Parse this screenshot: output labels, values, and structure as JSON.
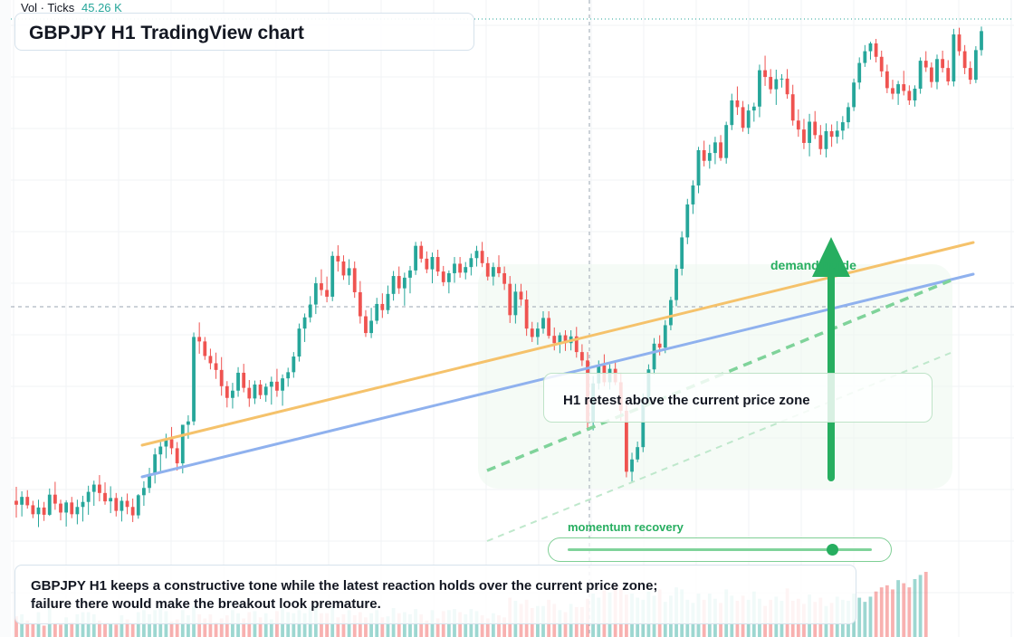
{
  "header": {
    "title": "GBPJPY H1 TradingView chart",
    "volume_label": "Vol · Ticks",
    "volume_value": "45.26 K"
  },
  "annotations": {
    "retest_text": "H1 retest above the current price zone",
    "demand_label": "demand guide",
    "momentum_label": "momentum recovery",
    "momentum_level": 0.87,
    "caption": "GBPJPY H1 keeps a constructive tone while the latest reaction holds over the current price zone; failure there would make the breakout look premature."
  },
  "colors": {
    "up": "#26a69a",
    "down": "#ef5350",
    "trend_orange": "#f5c26b",
    "trend_blue": "#8fb1ee",
    "accent_green": "#27ae60"
  },
  "chart_data": {
    "type": "candlestick",
    "title": "GBPJPY H1 TradingView chart",
    "ylim": [
      0,
      100
    ],
    "candles": [
      {
        "o": 14.0,
        "h": 16.5,
        "l": 11.0,
        "c": 13.3
      },
      {
        "o": 13.3,
        "h": 15.7,
        "l": 11.2,
        "c": 14.7
      },
      {
        "o": 14.7,
        "h": 15.9,
        "l": 12.6,
        "c": 13.2
      },
      {
        "o": 13.2,
        "h": 14.0,
        "l": 10.9,
        "c": 11.6
      },
      {
        "o": 11.6,
        "h": 14.2,
        "l": 9.3,
        "c": 12.8
      },
      {
        "o": 12.8,
        "h": 13.8,
        "l": 10.4,
        "c": 11.5
      },
      {
        "o": 11.5,
        "h": 16.2,
        "l": 11.3,
        "c": 15.1
      },
      {
        "o": 15.1,
        "h": 17.4,
        "l": 12.4,
        "c": 13.5
      },
      {
        "o": 13.5,
        "h": 14.2,
        "l": 10.5,
        "c": 11.9
      },
      {
        "o": 11.9,
        "h": 14.1,
        "l": 9.4,
        "c": 13.7
      },
      {
        "o": 13.7,
        "h": 14.7,
        "l": 10.9,
        "c": 11.6
      },
      {
        "o": 11.6,
        "h": 14.2,
        "l": 9.8,
        "c": 12.9
      },
      {
        "o": 12.9,
        "h": 14.9,
        "l": 10.3,
        "c": 13.8
      },
      {
        "o": 13.8,
        "h": 16.7,
        "l": 11.5,
        "c": 15.6
      },
      {
        "o": 15.6,
        "h": 17.6,
        "l": 13.1,
        "c": 16.9
      },
      {
        "o": 16.9,
        "h": 18.6,
        "l": 13.9,
        "c": 15.4
      },
      {
        "o": 15.4,
        "h": 17.3,
        "l": 13.3,
        "c": 13.9
      },
      {
        "o": 13.9,
        "h": 16.6,
        "l": 11.8,
        "c": 14.5
      },
      {
        "o": 14.5,
        "h": 15.4,
        "l": 11.2,
        "c": 12.2
      },
      {
        "o": 12.2,
        "h": 14.7,
        "l": 10.3,
        "c": 14.0
      },
      {
        "o": 14.0,
        "h": 15.3,
        "l": 11.6,
        "c": 12.9
      },
      {
        "o": 12.9,
        "h": 14.4,
        "l": 10.2,
        "c": 11.4
      },
      {
        "o": 11.4,
        "h": 15.2,
        "l": 10.8,
        "c": 15.0
      },
      {
        "o": 15.0,
        "h": 17.5,
        "l": 13.1,
        "c": 16.3
      },
      {
        "o": 16.3,
        "h": 19.9,
        "l": 15.4,
        "c": 18.8
      },
      {
        "o": 18.8,
        "h": 23.4,
        "l": 17.1,
        "c": 22.3
      },
      {
        "o": 22.3,
        "h": 24.8,
        "l": 19.2,
        "c": 23.7
      },
      {
        "o": 23.7,
        "h": 26.0,
        "l": 21.6,
        "c": 25.0
      },
      {
        "o": 25.0,
        "h": 27.2,
        "l": 22.3,
        "c": 23.4
      },
      {
        "o": 23.4,
        "h": 24.5,
        "l": 19.4,
        "c": 20.7
      },
      {
        "o": 20.7,
        "h": 27.5,
        "l": 18.9,
        "c": 27.6
      },
      {
        "o": 27.6,
        "h": 29.3,
        "l": 25.1,
        "c": 28.2
      },
      {
        "o": 28.2,
        "h": 44.1,
        "l": 27.5,
        "c": 43.3
      },
      {
        "o": 43.3,
        "h": 45.9,
        "l": 40.3,
        "c": 42.5
      },
      {
        "o": 42.5,
        "h": 43.3,
        "l": 39.2,
        "c": 39.9
      },
      {
        "o": 39.9,
        "h": 41.2,
        "l": 37.5,
        "c": 38.6
      },
      {
        "o": 38.6,
        "h": 40.5,
        "l": 35.8,
        "c": 37.4
      },
      {
        "o": 37.4,
        "h": 39.7,
        "l": 32.8,
        "c": 34.5
      },
      {
        "o": 34.5,
        "h": 35.4,
        "l": 30.7,
        "c": 32.4
      },
      {
        "o": 32.4,
        "h": 35.1,
        "l": 30.5,
        "c": 33.7
      },
      {
        "o": 33.7,
        "h": 37.9,
        "l": 32.6,
        "c": 36.9
      },
      {
        "o": 36.9,
        "h": 38.5,
        "l": 33.4,
        "c": 34.2
      },
      {
        "o": 34.2,
        "h": 35.6,
        "l": 30.8,
        "c": 32.3
      },
      {
        "o": 32.3,
        "h": 35.5,
        "l": 31.3,
        "c": 34.8
      },
      {
        "o": 34.8,
        "h": 35.6,
        "l": 32.2,
        "c": 32.9
      },
      {
        "o": 32.9,
        "h": 35.0,
        "l": 31.7,
        "c": 34.4
      },
      {
        "o": 34.4,
        "h": 36.2,
        "l": 31.2,
        "c": 35.3
      },
      {
        "o": 35.3,
        "h": 37.6,
        "l": 32.6,
        "c": 33.7
      },
      {
        "o": 33.7,
        "h": 36.6,
        "l": 31.0,
        "c": 35.9
      },
      {
        "o": 35.9,
        "h": 37.8,
        "l": 34.4,
        "c": 37.0
      },
      {
        "o": 37.0,
        "h": 40.6,
        "l": 36.0,
        "c": 39.8
      },
      {
        "o": 39.8,
        "h": 45.7,
        "l": 38.9,
        "c": 44.8
      },
      {
        "o": 44.8,
        "h": 47.5,
        "l": 42.4,
        "c": 46.8
      },
      {
        "o": 46.8,
        "h": 50.6,
        "l": 45.9,
        "c": 49.1
      },
      {
        "o": 49.1,
        "h": 54.0,
        "l": 47.4,
        "c": 52.9
      },
      {
        "o": 52.9,
        "h": 55.4,
        "l": 50.7,
        "c": 51.7
      },
      {
        "o": 51.7,
        "h": 54.1,
        "l": 49.5,
        "c": 50.5
      },
      {
        "o": 50.5,
        "h": 58.6,
        "l": 49.7,
        "c": 57.8
      },
      {
        "o": 57.8,
        "h": 59.7,
        "l": 55.0,
        "c": 56.8
      },
      {
        "o": 56.8,
        "h": 57.9,
        "l": 53.5,
        "c": 54.3
      },
      {
        "o": 54.3,
        "h": 57.2,
        "l": 52.6,
        "c": 55.6
      },
      {
        "o": 55.6,
        "h": 56.8,
        "l": 50.3,
        "c": 51.3
      },
      {
        "o": 51.3,
        "h": 53.3,
        "l": 45.7,
        "c": 47.0
      },
      {
        "o": 47.0,
        "h": 48.1,
        "l": 43.3,
        "c": 44.0
      },
      {
        "o": 44.0,
        "h": 48.5,
        "l": 43.1,
        "c": 46.2
      },
      {
        "o": 46.2,
        "h": 50.3,
        "l": 45.6,
        "c": 49.2
      },
      {
        "o": 49.2,
        "h": 51.1,
        "l": 46.7,
        "c": 48.1
      },
      {
        "o": 48.1,
        "h": 52.5,
        "l": 47.4,
        "c": 51.0
      },
      {
        "o": 51.0,
        "h": 55.1,
        "l": 49.8,
        "c": 54.2
      },
      {
        "o": 54.2,
        "h": 55.9,
        "l": 51.0,
        "c": 52.0
      },
      {
        "o": 52.0,
        "h": 54.8,
        "l": 48.9,
        "c": 53.9
      },
      {
        "o": 53.9,
        "h": 56.0,
        "l": 51.1,
        "c": 55.2
      },
      {
        "o": 55.2,
        "h": 60.3,
        "l": 54.4,
        "c": 59.6
      },
      {
        "o": 59.6,
        "h": 60.4,
        "l": 56.6,
        "c": 57.3
      },
      {
        "o": 57.3,
        "h": 58.6,
        "l": 54.7,
        "c": 55.4
      },
      {
        "o": 55.4,
        "h": 58.4,
        "l": 52.9,
        "c": 57.6
      },
      {
        "o": 57.6,
        "h": 58.9,
        "l": 54.2,
        "c": 55.0
      },
      {
        "o": 55.0,
        "h": 56.0,
        "l": 52.4,
        "c": 53.1
      },
      {
        "o": 53.1,
        "h": 55.2,
        "l": 51.1,
        "c": 54.7
      },
      {
        "o": 54.7,
        "h": 57.6,
        "l": 53.0,
        "c": 56.4
      },
      {
        "o": 56.4,
        "h": 57.6,
        "l": 53.9,
        "c": 54.8
      },
      {
        "o": 54.8,
        "h": 56.7,
        "l": 53.6,
        "c": 55.8
      },
      {
        "o": 55.8,
        "h": 58.2,
        "l": 54.3,
        "c": 57.4
      },
      {
        "o": 57.4,
        "h": 59.6,
        "l": 55.9,
        "c": 58.7
      },
      {
        "o": 58.7,
        "h": 60.3,
        "l": 55.8,
        "c": 56.5
      },
      {
        "o": 56.5,
        "h": 57.6,
        "l": 53.4,
        "c": 54.1
      },
      {
        "o": 54.1,
        "h": 56.6,
        "l": 52.5,
        "c": 55.8
      },
      {
        "o": 55.8,
        "h": 57.9,
        "l": 54.0,
        "c": 54.7
      },
      {
        "o": 54.7,
        "h": 55.9,
        "l": 51.7,
        "c": 52.8
      },
      {
        "o": 52.8,
        "h": 54.2,
        "l": 45.8,
        "c": 47.2
      },
      {
        "o": 47.2,
        "h": 52.8,
        "l": 45.7,
        "c": 51.4
      },
      {
        "o": 51.4,
        "h": 52.8,
        "l": 48.9,
        "c": 50.0
      },
      {
        "o": 50.0,
        "h": 51.6,
        "l": 43.5,
        "c": 44.8
      },
      {
        "o": 44.8,
        "h": 46.0,
        "l": 42.4,
        "c": 43.3
      },
      {
        "o": 43.3,
        "h": 45.9,
        "l": 41.9,
        "c": 44.8
      },
      {
        "o": 44.8,
        "h": 47.9,
        "l": 43.9,
        "c": 46.7
      },
      {
        "o": 46.7,
        "h": 47.9,
        "l": 43.0,
        "c": 43.5
      },
      {
        "o": 43.5,
        "h": 45.0,
        "l": 40.9,
        "c": 42.2
      },
      {
        "o": 42.2,
        "h": 44.1,
        "l": 40.4,
        "c": 43.6
      },
      {
        "o": 43.6,
        "h": 44.5,
        "l": 40.8,
        "c": 42.2
      },
      {
        "o": 42.2,
        "h": 44.5,
        "l": 40.9,
        "c": 43.4
      },
      {
        "o": 43.4,
        "h": 45.1,
        "l": 39.6,
        "c": 40.6
      },
      {
        "o": 40.6,
        "h": 42.0,
        "l": 38.1,
        "c": 39.1
      },
      {
        "o": 39.1,
        "h": 40.6,
        "l": 26.5,
        "c": 28.1
      },
      {
        "o": 28.1,
        "h": 36.3,
        "l": 26.6,
        "c": 35.0
      },
      {
        "o": 35.0,
        "h": 39.1,
        "l": 33.9,
        "c": 38.2
      },
      {
        "o": 38.2,
        "h": 40.2,
        "l": 34.5,
        "c": 35.2
      },
      {
        "o": 35.2,
        "h": 38.4,
        "l": 33.9,
        "c": 37.6
      },
      {
        "o": 37.6,
        "h": 38.8,
        "l": 34.7,
        "c": 35.2
      },
      {
        "o": 35.2,
        "h": 36.9,
        "l": 28.3,
        "c": 30.1
      },
      {
        "o": 30.1,
        "h": 31.3,
        "l": 18.2,
        "c": 19.2
      },
      {
        "o": 19.2,
        "h": 22.6,
        "l": 17.2,
        "c": 21.4
      },
      {
        "o": 21.4,
        "h": 24.6,
        "l": 20.9,
        "c": 23.6
      },
      {
        "o": 23.6,
        "h": 33.2,
        "l": 22.7,
        "c": 32.1
      },
      {
        "o": 32.1,
        "h": 38.4,
        "l": 31.7,
        "c": 37.5
      },
      {
        "o": 37.5,
        "h": 43.1,
        "l": 36.6,
        "c": 42.1
      },
      {
        "o": 42.1,
        "h": 43.6,
        "l": 40.0,
        "c": 41.4
      },
      {
        "o": 41.4,
        "h": 46.3,
        "l": 40.4,
        "c": 45.4
      },
      {
        "o": 45.4,
        "h": 50.5,
        "l": 44.5,
        "c": 49.9
      },
      {
        "o": 49.9,
        "h": 56.2,
        "l": 48.8,
        "c": 55.5
      },
      {
        "o": 55.5,
        "h": 62.2,
        "l": 54.3,
        "c": 61.1
      },
      {
        "o": 61.1,
        "h": 68.0,
        "l": 59.9,
        "c": 67.0
      },
      {
        "o": 67.0,
        "h": 71.3,
        "l": 65.3,
        "c": 70.4
      },
      {
        "o": 70.4,
        "h": 77.3,
        "l": 69.0,
        "c": 76.7
      },
      {
        "o": 76.7,
        "h": 78.4,
        "l": 73.8,
        "c": 74.8
      },
      {
        "o": 74.8,
        "h": 77.7,
        "l": 73.4,
        "c": 76.2
      },
      {
        "o": 76.2,
        "h": 79.1,
        "l": 74.2,
        "c": 78.1
      },
      {
        "o": 78.1,
        "h": 79.4,
        "l": 74.8,
        "c": 75.3
      },
      {
        "o": 75.3,
        "h": 81.8,
        "l": 74.3,
        "c": 81.2
      },
      {
        "o": 81.2,
        "h": 86.8,
        "l": 80.3,
        "c": 85.6
      },
      {
        "o": 85.6,
        "h": 88.1,
        "l": 83.0,
        "c": 84.4
      },
      {
        "o": 84.4,
        "h": 85.5,
        "l": 80.0,
        "c": 80.7
      },
      {
        "o": 80.7,
        "h": 84.9,
        "l": 79.6,
        "c": 83.8
      },
      {
        "o": 83.8,
        "h": 85.2,
        "l": 81.8,
        "c": 84.5
      },
      {
        "o": 84.5,
        "h": 92.0,
        "l": 82.6,
        "c": 91.0
      },
      {
        "o": 91.0,
        "h": 93.6,
        "l": 88.2,
        "c": 89.8
      },
      {
        "o": 89.8,
        "h": 91.2,
        "l": 86.8,
        "c": 87.6
      },
      {
        "o": 87.6,
        "h": 91.1,
        "l": 84.8,
        "c": 89.4
      },
      {
        "o": 89.4,
        "h": 90.3,
        "l": 87.9,
        "c": 89.5
      },
      {
        "o": 89.5,
        "h": 91.2,
        "l": 85.9,
        "c": 86.7
      },
      {
        "o": 86.7,
        "h": 88.4,
        "l": 81.1,
        "c": 82.0
      },
      {
        "o": 82.0,
        "h": 84.0,
        "l": 79.1,
        "c": 80.4
      },
      {
        "o": 80.4,
        "h": 82.3,
        "l": 76.9,
        "c": 78.0
      },
      {
        "o": 78.0,
        "h": 83.2,
        "l": 75.6,
        "c": 81.8
      },
      {
        "o": 81.8,
        "h": 83.7,
        "l": 78.7,
        "c": 79.4
      },
      {
        "o": 79.4,
        "h": 81.2,
        "l": 75.9,
        "c": 76.9
      },
      {
        "o": 76.9,
        "h": 81.5,
        "l": 75.4,
        "c": 80.1
      },
      {
        "o": 80.1,
        "h": 81.3,
        "l": 77.3,
        "c": 79.1
      },
      {
        "o": 79.1,
        "h": 81.9,
        "l": 77.9,
        "c": 80.2
      },
      {
        "o": 80.2,
        "h": 82.8,
        "l": 78.6,
        "c": 81.7
      },
      {
        "o": 81.7,
        "h": 85.2,
        "l": 80.6,
        "c": 84.4
      },
      {
        "o": 84.4,
        "h": 89.5,
        "l": 83.7,
        "c": 88.8
      },
      {
        "o": 88.8,
        "h": 93.3,
        "l": 87.6,
        "c": 92.3
      },
      {
        "o": 92.3,
        "h": 95.5,
        "l": 91.6,
        "c": 94.4
      },
      {
        "o": 94.4,
        "h": 96.1,
        "l": 92.9,
        "c": 95.8
      },
      {
        "o": 95.8,
        "h": 96.6,
        "l": 92.4,
        "c": 93.4
      },
      {
        "o": 93.4,
        "h": 94.5,
        "l": 89.8,
        "c": 90.8
      },
      {
        "o": 90.8,
        "h": 92.0,
        "l": 86.9,
        "c": 87.8
      },
      {
        "o": 87.8,
        "h": 89.3,
        "l": 85.8,
        "c": 86.8
      },
      {
        "o": 86.8,
        "h": 89.1,
        "l": 84.8,
        "c": 88.5
      },
      {
        "o": 88.5,
        "h": 90.9,
        "l": 86.5,
        "c": 87.3
      },
      {
        "o": 87.3,
        "h": 88.3,
        "l": 84.8,
        "c": 85.6
      },
      {
        "o": 85.6,
        "h": 88.3,
        "l": 84.5,
        "c": 87.7
      },
      {
        "o": 87.7,
        "h": 93.3,
        "l": 86.8,
        "c": 92.7
      },
      {
        "o": 92.7,
        "h": 94.4,
        "l": 90.7,
        "c": 91.5
      },
      {
        "o": 91.5,
        "h": 92.4,
        "l": 87.9,
        "c": 88.9
      },
      {
        "o": 88.9,
        "h": 93.8,
        "l": 87.6,
        "c": 93.0
      },
      {
        "o": 93.0,
        "h": 94.5,
        "l": 90.6,
        "c": 91.4
      },
      {
        "o": 91.4,
        "h": 92.8,
        "l": 88.3,
        "c": 89.0
      },
      {
        "o": 89.0,
        "h": 98.4,
        "l": 88.1,
        "c": 97.4
      },
      {
        "o": 97.4,
        "h": 98.6,
        "l": 93.6,
        "c": 94.4
      },
      {
        "o": 94.4,
        "h": 95.5,
        "l": 90.3,
        "c": 91.4
      },
      {
        "o": 91.4,
        "h": 92.6,
        "l": 88.5,
        "c": 89.3
      },
      {
        "o": 89.3,
        "h": 95.3,
        "l": 88.7,
        "c": 94.6
      },
      {
        "o": 94.6,
        "h": 98.8,
        "l": 93.6,
        "c": 98.0
      }
    ],
    "volumes": [
      2.0,
      2.2,
      1.6,
      1.3,
      2.4,
      1.1,
      2.8,
      1.3,
      1.2,
      1.9,
      1.4,
      2.2,
      2.4,
      2.4,
      2.2,
      1.6,
      1.3,
      1.3,
      1.2,
      2.1,
      1.7,
      1.3,
      2.4,
      2.6,
      2.2,
      2.6,
      3.0,
      2.5,
      1.5,
      1.7,
      2.6,
      2.1,
      3.0,
      2.2,
      1.8,
      2.2,
      1.4,
      1.8,
      2.1,
      2.6,
      2.3,
      1.8,
      2.4,
      2.5,
      1.9,
      2.3,
      1.7,
      2.5,
      2.8,
      2.4,
      2.3,
      2.6,
      2.3,
      2.9,
      3.2,
      2.3,
      2.3,
      2.9,
      1.9,
      2.2,
      2.6,
      2.1,
      2.4,
      1.9,
      2.3,
      2.6,
      1.9,
      2.0,
      2.8,
      2.3,
      2.4,
      2.2,
      2.7,
      2.2,
      1.6,
      2.6,
      1.8,
      2.5,
      2.6,
      2.7,
      2.4,
      2.2,
      2.7,
      2.5,
      2.1,
      1.8,
      2.3,
      2.1,
      1.9,
      3.8,
      3.5,
      3.2,
      3.6,
      2.8,
      3.0,
      3.0,
      3.6,
      3.2,
      2.6,
      2.4,
      3.2,
      2.9,
      2.9,
      3.7,
      4.2,
      3.8,
      4.5,
      4.3,
      5.0,
      4.6,
      4.1,
      4.2,
      3.8,
      3.6,
      4.4,
      4.0,
      4.6,
      3.4,
      4.0,
      4.8,
      4.6,
      3.6,
      3.3,
      4.2,
      3.6,
      4.2,
      3.7,
      3.3,
      4.6,
      4.0,
      3.5,
      4.0,
      3.6,
      4.4,
      3.7,
      3.0,
      3.6,
      3.9,
      3.5,
      4.7,
      3.5,
      3.7,
      3.2,
      4.1,
      3.4,
      3.8,
      3.0,
      3.3,
      3.9,
      3.6,
      3.5,
      4.2,
      3.8,
      3.4,
      3.9,
      4.4,
      4.8,
      5.0,
      4.6,
      5.5,
      5.2,
      4.8,
      5.6,
      6.0,
      6.3
    ]
  }
}
